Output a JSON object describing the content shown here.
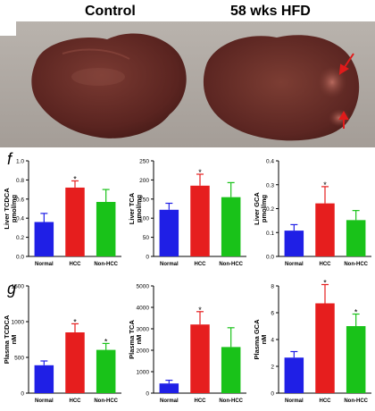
{
  "photo": {
    "left_label": "Control",
    "right_label": "58 wks HFD"
  },
  "panel_labels": [
    "f",
    "g"
  ],
  "chart_data": [
    {
      "type": "bar",
      "ylabel": "Liver TCDCA pmol/mg",
      "ylim": [
        0,
        1.0
      ],
      "yticks": [
        "0.0",
        "0.2",
        "0.4",
        "0.6",
        "0.8",
        "1.0"
      ],
      "categories": [
        "Normal",
        "HCC",
        "Non-HCC"
      ],
      "values": [
        0.36,
        0.72,
        0.57
      ],
      "errors": [
        0.09,
        0.07,
        0.13
      ],
      "significance": [
        "",
        "*",
        ""
      ],
      "colors": [
        "#1f1fe6",
        "#e61e1e",
        "#19c219"
      ]
    },
    {
      "type": "bar",
      "ylabel": "Liver TCA pmol/mg",
      "ylim": [
        0,
        250
      ],
      "yticks": [
        "0",
        "50",
        "100",
        "150",
        "200",
        "250"
      ],
      "categories": [
        "Normal",
        "HCC",
        "Non-HCC"
      ],
      "values": [
        122,
        185,
        155
      ],
      "errors": [
        17,
        30,
        38
      ],
      "significance": [
        "",
        "*",
        ""
      ],
      "colors": [
        "#1f1fe6",
        "#e61e1e",
        "#19c219"
      ]
    },
    {
      "type": "bar",
      "ylabel": "Liver GCA pmol/mg",
      "ylim": [
        0,
        0.4
      ],
      "yticks": [
        "0.0",
        "0.1",
        "0.2",
        "0.3",
        "0.4"
      ],
      "categories": [
        "Normal",
        "HCC",
        "Non-HCC"
      ],
      "values": [
        0.108,
        0.222,
        0.152
      ],
      "errors": [
        0.025,
        0.07,
        0.04
      ],
      "significance": [
        "",
        "*",
        ""
      ],
      "colors": [
        "#1f1fe6",
        "#e61e1e",
        "#19c219"
      ]
    },
    {
      "type": "bar",
      "ylabel": "Plasma TCDCA nM",
      "ylim": [
        0,
        1500
      ],
      "yticks": [
        "0",
        "500",
        "1000",
        "1500"
      ],
      "categories": [
        "Normal",
        "HCC",
        "Non-HCC"
      ],
      "values": [
        390,
        850,
        605
      ],
      "errors": [
        60,
        120,
        90
      ],
      "significance": [
        "",
        "*",
        "*"
      ],
      "colors": [
        "#1f1fe6",
        "#e61e1e",
        "#19c219"
      ]
    },
    {
      "type": "bar",
      "ylabel": "Plasma TCA nM",
      "ylim": [
        0,
        5000
      ],
      "yticks": [
        "0",
        "1000",
        "2000",
        "3000",
        "4000",
        "5000"
      ],
      "categories": [
        "Normal",
        "HCC",
        "Non-HCC"
      ],
      "values": [
        450,
        3200,
        2150
      ],
      "errors": [
        150,
        600,
        900
      ],
      "significance": [
        "",
        "*",
        ""
      ],
      "colors": [
        "#1f1fe6",
        "#e61e1e",
        "#19c219"
      ]
    },
    {
      "type": "bar",
      "ylabel": "Plasma GCA nM",
      "ylim": [
        0,
        8
      ],
      "yticks": [
        "0",
        "2",
        "4",
        "6",
        "8"
      ],
      "categories": [
        "Normal",
        "HCC",
        "Non-HCC"
      ],
      "values": [
        2.65,
        6.7,
        5.0
      ],
      "errors": [
        0.45,
        1.4,
        0.9
      ],
      "significance": [
        "",
        "*",
        "*"
      ],
      "colors": [
        "#1f1fe6",
        "#e61e1e",
        "#19c219"
      ]
    }
  ]
}
